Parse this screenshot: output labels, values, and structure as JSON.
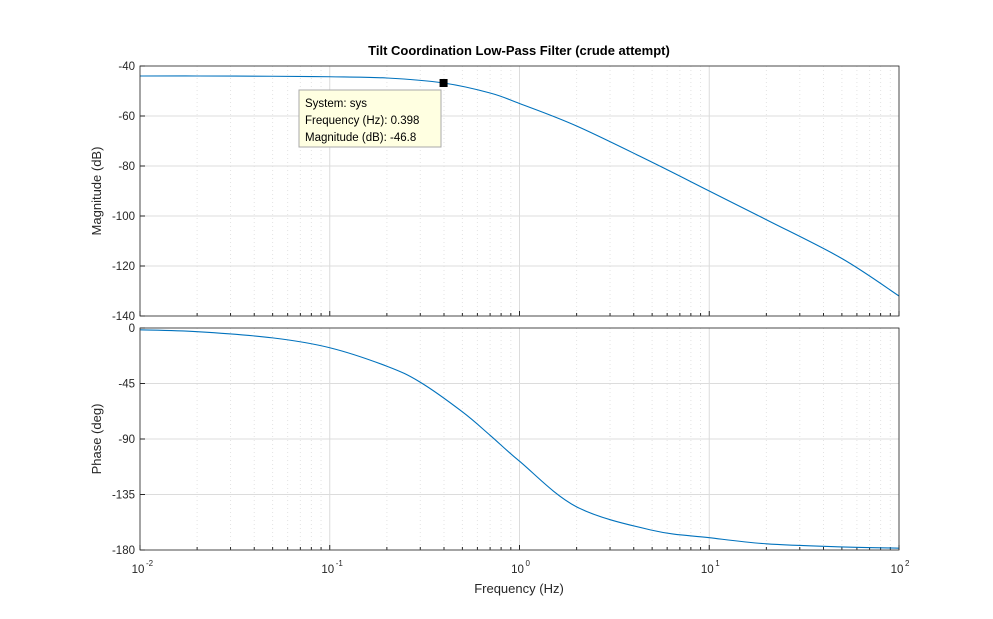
{
  "chart_data": {
    "type": "line",
    "title": "Tilt Coordination Low-Pass Filter (crude attempt)",
    "xlabel": "Frequency  (Hz)",
    "x_scale": "log",
    "xlim": [
      0.01,
      100
    ],
    "x_ticks": [
      {
        "base": "10",
        "exp": "-2"
      },
      {
        "base": "10",
        "exp": "-1"
      },
      {
        "base": "10",
        "exp": "0"
      },
      {
        "base": "10",
        "exp": "1"
      },
      {
        "base": "10",
        "exp": "2"
      }
    ],
    "grid": true,
    "colors": {
      "series": "#0072bd"
    },
    "panels": [
      {
        "name": "magnitude",
        "ylabel": "Magnitude (dB)",
        "ylim": [
          -140,
          -40
        ],
        "yticks": [
          -40,
          -60,
          -80,
          -100,
          -120,
          -140
        ],
        "x": [
          0.01,
          0.02,
          0.05,
          0.1,
          0.2,
          0.398,
          0.7,
          1,
          2,
          5,
          10,
          20,
          50,
          100
        ],
        "y": [
          -44.0,
          -44.0,
          -44.1,
          -44.3,
          -44.8,
          -46.8,
          -50.8,
          -55.0,
          -64.0,
          -78.5,
          -90.0,
          -101.5,
          -117.0,
          -132.0
        ]
      },
      {
        "name": "phase",
        "ylabel": "Phase (deg)",
        "ylim": [
          -180,
          0
        ],
        "yticks": [
          0,
          -45,
          -90,
          -135,
          -180
        ],
        "x": [
          0.01,
          0.02,
          0.05,
          0.1,
          0.2,
          0.3,
          0.5,
          0.7,
          1,
          2,
          5,
          10,
          20,
          50,
          100
        ],
        "y": [
          -1.5,
          -3.0,
          -8.0,
          -16.0,
          -31.0,
          -44.0,
          -68.0,
          -87.0,
          -108.0,
          -145.0,
          -164.0,
          -170.0,
          -175.0,
          -177.5,
          -178.5
        ]
      }
    ],
    "datatip": {
      "x": 0.398,
      "y": -46.8,
      "lines": [
        "System: sys",
        "Frequency (Hz): 0.398",
        "Magnitude (dB): -46.8"
      ]
    }
  }
}
